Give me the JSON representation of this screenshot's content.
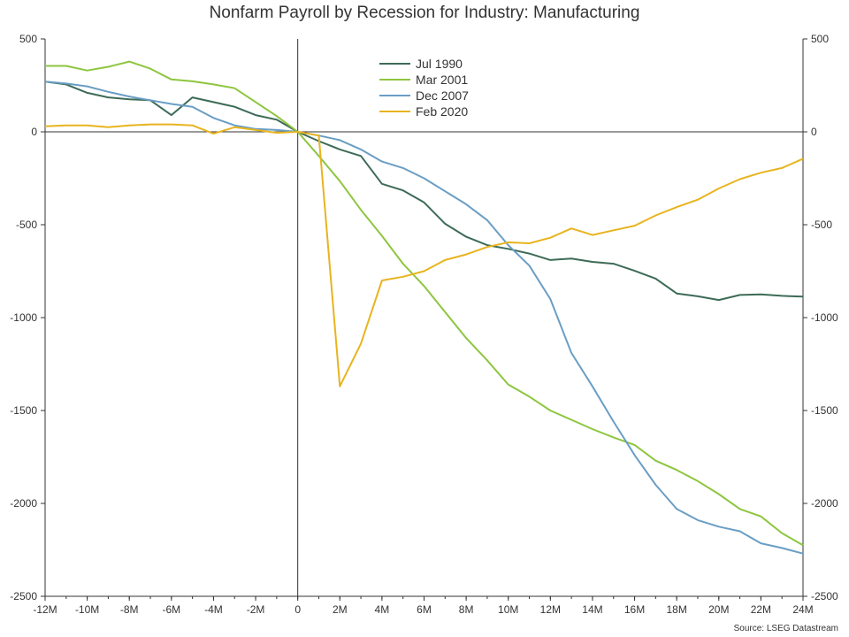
{
  "chart_data": {
    "type": "line",
    "title": "Nonfarm Payroll by Recession for Industry: Manufacturing",
    "source": "Source: LSEG Datastream",
    "xlabel": "",
    "ylabel": "",
    "x": [
      -12,
      -11,
      -10,
      -9,
      -8,
      -7,
      -6,
      -5,
      -4,
      -3,
      -2,
      -1,
      0,
      1,
      2,
      3,
      4,
      5,
      6,
      7,
      8,
      9,
      10,
      11,
      12,
      13,
      14,
      15,
      16,
      17,
      18,
      19,
      20,
      21,
      22,
      23,
      24
    ],
    "x_tick_values": [
      -12,
      -10,
      -8,
      -6,
      -4,
      -2,
      0,
      2,
      4,
      6,
      8,
      10,
      12,
      14,
      16,
      18,
      20,
      22,
      24
    ],
    "x_tick_labels": [
      "-12M",
      "-10M",
      "-8M",
      "-6M",
      "-4M",
      "-2M",
      "0",
      "2M",
      "4M",
      "6M",
      "8M",
      "10M",
      "12M",
      "14M",
      "16M",
      "18M",
      "20M",
      "22M",
      "24M"
    ],
    "y_ticks": [
      500,
      0,
      -500,
      -1000,
      -1500,
      -2000,
      -2500
    ],
    "y_tick_labels": [
      "500",
      "0",
      "-500",
      "-1000",
      "-1500",
      "-2000",
      "-2500"
    ],
    "ylim": [
      -2500,
      500
    ],
    "xlim": [
      -12,
      24
    ],
    "grid": false,
    "legend_position": "top-center",
    "series": [
      {
        "name": "Jul 1990",
        "color": "#3d6b57",
        "values": [
          270,
          255,
          210,
          185,
          175,
          170,
          90,
          185,
          160,
          135,
          90,
          65,
          0,
          -50,
          -95,
          -130,
          -280,
          -315,
          -380,
          -495,
          -565,
          -610,
          -630,
          -655,
          -690,
          -682,
          -700,
          -710,
          -748,
          -790,
          -870,
          -885,
          -905,
          -878,
          -875,
          -883,
          -887
        ]
      },
      {
        "name": "Mar 2001",
        "color": "#8dc63f",
        "values": [
          355,
          355,
          330,
          350,
          378,
          340,
          282,
          272,
          255,
          235,
          160,
          85,
          0,
          -130,
          -265,
          -420,
          -560,
          -710,
          -830,
          -970,
          -1110,
          -1230,
          -1360,
          -1425,
          -1500,
          -1550,
          -1600,
          -1645,
          -1685,
          -1770,
          -1820,
          -1880,
          -1950,
          -2030,
          -2070,
          -2160,
          -2225
        ]
      },
      {
        "name": "Dec 2007",
        "color": "#6a9ec4",
        "values": [
          270,
          260,
          245,
          215,
          190,
          170,
          150,
          135,
          75,
          35,
          15,
          10,
          0,
          -20,
          -45,
          -95,
          -160,
          -195,
          -250,
          -320,
          -390,
          -475,
          -610,
          -720,
          -900,
          -1190,
          -1370,
          -1560,
          -1740,
          -1900,
          -2030,
          -2090,
          -2125,
          -2150,
          -2215,
          -2240,
          -2270
        ]
      },
      {
        "name": "Feb 2020",
        "color": "#e8b41e",
        "values": [
          30,
          35,
          35,
          25,
          35,
          40,
          40,
          35,
          -10,
          25,
          10,
          -5,
          0,
          -20,
          -1370,
          -1140,
          -800,
          -780,
          -750,
          -690,
          -660,
          -620,
          -595,
          -600,
          -570,
          -520,
          -555,
          -530,
          -505,
          -450,
          -405,
          -365,
          -305,
          -255,
          -220,
          -195,
          -145
        ]
      }
    ]
  }
}
